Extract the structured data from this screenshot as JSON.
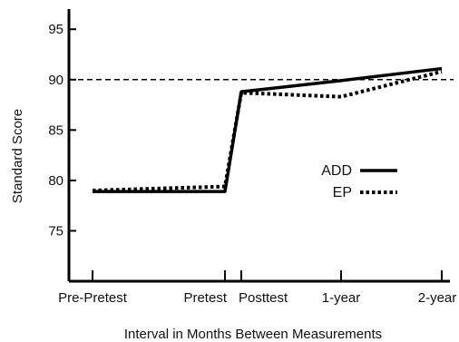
{
  "chart_data": {
    "type": "line",
    "title": "",
    "xlabel": "Interval in Months Between Measurements",
    "ylabel": "Standard Score",
    "categories": [
      "Pre-Pretest",
      "Pretest",
      "Posttest",
      "1-year",
      "2-year"
    ],
    "x": [
      0,
      24,
      25.5,
      36,
      55
    ],
    "ylim": [
      70,
      97
    ],
    "yticks": [
      75,
      80,
      85,
      90,
      95
    ],
    "reference_line": {
      "y": 90,
      "style": "dashed"
    },
    "series": [
      {
        "name": "ADD",
        "style": "solid",
        "values": [
          78.9,
          78.9,
          88.8,
          89.9,
          91.1
        ]
      },
      {
        "name": "EP",
        "style": "dotted",
        "values": [
          79.0,
          79.4,
          88.7,
          88.3,
          90.8
        ]
      }
    ],
    "legend": {
      "position": "right-center"
    },
    "grid": false
  }
}
